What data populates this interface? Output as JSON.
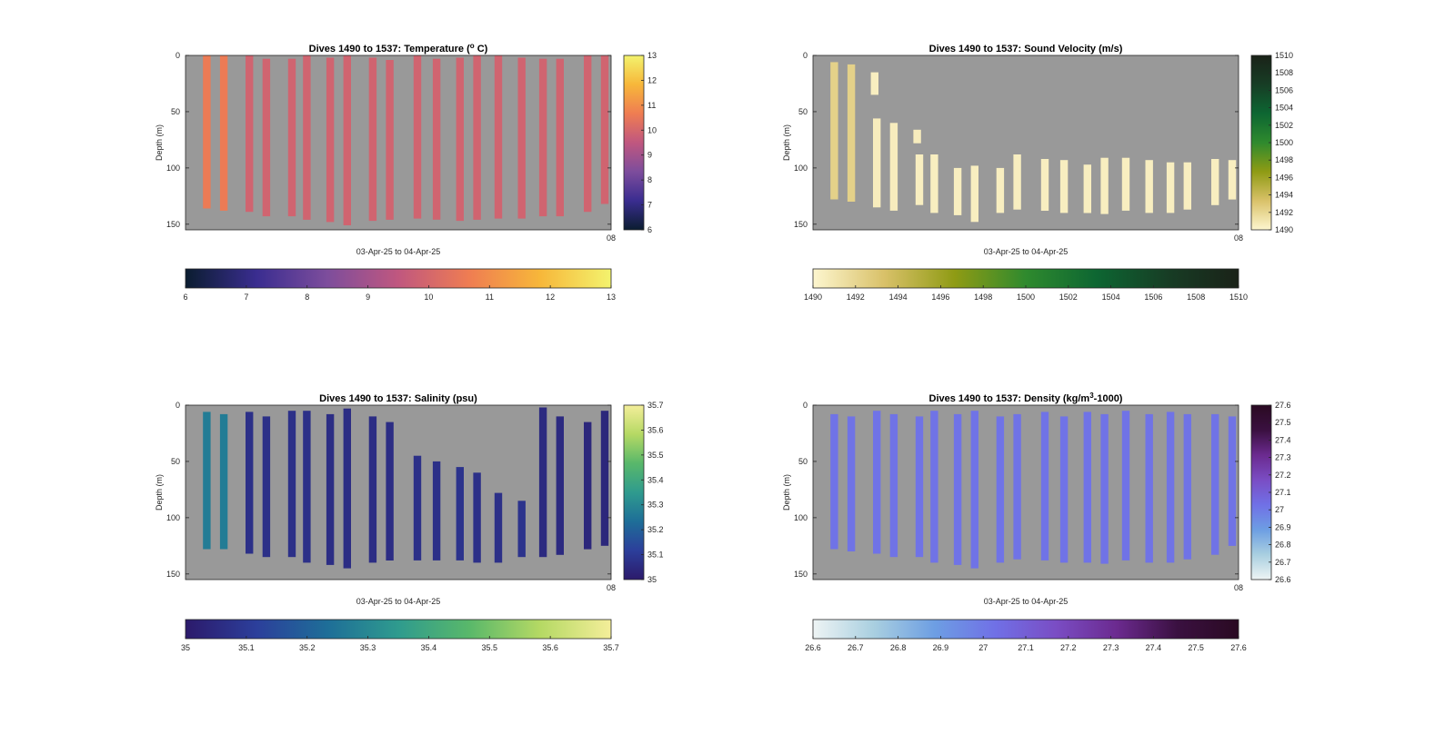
{
  "chart_data": [
    {
      "type": "heatmap",
      "title": "Dives 1490 to 1537: Temperature (°C)",
      "title_main": "Dives 1490 to 1537: Temperature (",
      "title_sup": "o",
      "title_end": " C)",
      "xlabel": "03-Apr-25 to 04-Apr-25",
      "ylabel": "Depth (m)",
      "y_ticks": [
        "0",
        "50",
        "100",
        "150"
      ],
      "x_end_label": "08",
      "ylim": [
        0,
        155
      ],
      "colorbar": {
        "min": 6,
        "max": 13,
        "ticks": [
          "6",
          "7",
          "8",
          "9",
          "10",
          "11",
          "12",
          "13"
        ],
        "stops": [
          "#0b1d30",
          "#3a2d90",
          "#7d4d9c",
          "#c0577f",
          "#ef7d52",
          "#f7b73a",
          "#f3f36e"
        ]
      },
      "profiles": [
        {
          "x": 0.05,
          "top": 0,
          "bottom": 136,
          "value": 10.6
        },
        {
          "x": 0.09,
          "top": 0,
          "bottom": 138,
          "value": 10.6
        },
        {
          "x": 0.15,
          "top": 0,
          "bottom": 139,
          "value": 9.9
        },
        {
          "x": 0.19,
          "top": 3,
          "bottom": 143,
          "value": 9.9
        },
        {
          "x": 0.25,
          "top": 3,
          "bottom": 143,
          "value": 9.9
        },
        {
          "x": 0.285,
          "top": 0,
          "bottom": 146,
          "value": 9.9
        },
        {
          "x": 0.34,
          "top": 2,
          "bottom": 148,
          "value": 9.9
        },
        {
          "x": 0.38,
          "top": 0,
          "bottom": 151,
          "value": 9.9
        },
        {
          "x": 0.44,
          "top": 2,
          "bottom": 147,
          "value": 9.9
        },
        {
          "x": 0.48,
          "top": 4,
          "bottom": 146,
          "value": 9.9
        },
        {
          "x": 0.545,
          "top": 0,
          "bottom": 145,
          "value": 9.9
        },
        {
          "x": 0.59,
          "top": 3,
          "bottom": 146,
          "value": 9.9
        },
        {
          "x": 0.645,
          "top": 2,
          "bottom": 147,
          "value": 9.9
        },
        {
          "x": 0.685,
          "top": 0,
          "bottom": 146,
          "value": 9.9
        },
        {
          "x": 0.735,
          "top": 0,
          "bottom": 145,
          "value": 9.9
        },
        {
          "x": 0.79,
          "top": 2,
          "bottom": 145,
          "value": 9.9
        },
        {
          "x": 0.84,
          "top": 3,
          "bottom": 143,
          "value": 9.9
        },
        {
          "x": 0.88,
          "top": 3,
          "bottom": 143,
          "value": 9.9
        },
        {
          "x": 0.945,
          "top": 0,
          "bottom": 139,
          "value": 9.9
        },
        {
          "x": 0.985,
          "top": 0,
          "bottom": 132,
          "value": 9.9
        }
      ]
    },
    {
      "type": "heatmap",
      "title": "Dives 1490 to 1537: Sound Velocity (m/s)",
      "title_main": "Dives 1490 to 1537: Sound Velocity (m/s)",
      "title_sup": "",
      "title_end": "",
      "xlabel": "03-Apr-25 to 04-Apr-25",
      "ylabel": "Depth (m)",
      "y_ticks": [
        "0",
        "50",
        "100",
        "150"
      ],
      "x_end_label": "08",
      "ylim": [
        0,
        155
      ],
      "colorbar": {
        "min": 1490,
        "max": 1510,
        "ticks": [
          "1490",
          "1492",
          "1494",
          "1496",
          "1498",
          "1500",
          "1502",
          "1504",
          "1506",
          "1508",
          "1510"
        ],
        "stops": [
          "#fdf6cf",
          "#d9c169",
          "#8f9b14",
          "#2f8a2e",
          "#0d6632",
          "#173d25",
          "#1a2218"
        ]
      },
      "profiles": [
        {
          "x": 0.05,
          "top": 6,
          "bottom": 128,
          "value": 1492.3
        },
        {
          "x": 0.09,
          "top": 8,
          "bottom": 130,
          "value": 1492.3
        },
        {
          "x": 0.145,
          "top": 15,
          "bottom": 35,
          "value": 1490.5
        },
        {
          "x": 0.15,
          "top": 56,
          "bottom": 135,
          "value": 1490.6
        },
        {
          "x": 0.19,
          "top": 60,
          "bottom": 138,
          "value": 1490.6
        },
        {
          "x": 0.245,
          "top": 66,
          "bottom": 78,
          "value": 1490.6
        },
        {
          "x": 0.25,
          "top": 88,
          "bottom": 133,
          "value": 1490.5
        },
        {
          "x": 0.285,
          "top": 88,
          "bottom": 140,
          "value": 1490.5
        },
        {
          "x": 0.34,
          "top": 100,
          "bottom": 142,
          "value": 1490.5
        },
        {
          "x": 0.38,
          "top": 98,
          "bottom": 148,
          "value": 1490.5
        },
        {
          "x": 0.44,
          "top": 100,
          "bottom": 140,
          "value": 1490.5
        },
        {
          "x": 0.48,
          "top": 88,
          "bottom": 137,
          "value": 1490.5
        },
        {
          "x": 0.545,
          "top": 92,
          "bottom": 138,
          "value": 1490.5
        },
        {
          "x": 0.59,
          "top": 93,
          "bottom": 140,
          "value": 1490.5
        },
        {
          "x": 0.645,
          "top": 97,
          "bottom": 140,
          "value": 1490.5
        },
        {
          "x": 0.685,
          "top": 91,
          "bottom": 141,
          "value": 1490.5
        },
        {
          "x": 0.735,
          "top": 91,
          "bottom": 138,
          "value": 1490.5
        },
        {
          "x": 0.79,
          "top": 93,
          "bottom": 140,
          "value": 1490.5
        },
        {
          "x": 0.84,
          "top": 95,
          "bottom": 140,
          "value": 1490.5
        },
        {
          "x": 0.88,
          "top": 95,
          "bottom": 137,
          "value": 1490.5
        },
        {
          "x": 0.945,
          "top": 92,
          "bottom": 133,
          "value": 1490.5
        },
        {
          "x": 0.985,
          "top": 93,
          "bottom": 128,
          "value": 1490.5
        }
      ]
    },
    {
      "type": "heatmap",
      "title": "Dives 1490 to 1537: Salinity (psu)",
      "title_main": "Dives 1490 to 1537: Salinity (psu)",
      "title_sup": "",
      "title_end": "",
      "xlabel": "03-Apr-25 to 04-Apr-25",
      "ylabel": "Depth (m)",
      "y_ticks": [
        "0",
        "50",
        "100",
        "150"
      ],
      "x_end_label": "08",
      "ylim": [
        0,
        155
      ],
      "colorbar": {
        "min": 35,
        "max": 35.7,
        "ticks": [
          "35",
          "35.1",
          "35.2",
          "35.3",
          "35.4",
          "35.5",
          "35.6",
          "35.7"
        ],
        "stops": [
          "#2c1a6b",
          "#2c3f9b",
          "#1e6e98",
          "#2f9b8e",
          "#59b86a",
          "#b5d964",
          "#f4ee9a"
        ]
      },
      "profiles": [
        {
          "x": 0.05,
          "top": 6,
          "bottom": 128,
          "value": 35.27
        },
        {
          "x": 0.09,
          "top": 8,
          "bottom": 128,
          "value": 35.27
        },
        {
          "x": 0.15,
          "top": 6,
          "bottom": 132,
          "value": 35.07
        },
        {
          "x": 0.19,
          "top": 10,
          "bottom": 135,
          "value": 35.07
        },
        {
          "x": 0.25,
          "top": 5,
          "bottom": 135,
          "value": 35.07
        },
        {
          "x": 0.285,
          "top": 5,
          "bottom": 140,
          "value": 35.07
        },
        {
          "x": 0.34,
          "top": 8,
          "bottom": 142,
          "value": 35.06
        },
        {
          "x": 0.38,
          "top": 3,
          "bottom": 145,
          "value": 35.06
        },
        {
          "x": 0.44,
          "top": 10,
          "bottom": 140,
          "value": 35.06
        },
        {
          "x": 0.48,
          "top": 15,
          "bottom": 138,
          "value": 35.06
        },
        {
          "x": 0.545,
          "top": 45,
          "bottom": 138,
          "value": 35.07
        },
        {
          "x": 0.59,
          "top": 50,
          "bottom": 138,
          "value": 35.07
        },
        {
          "x": 0.645,
          "top": 55,
          "bottom": 138,
          "value": 35.08
        },
        {
          "x": 0.685,
          "top": 60,
          "bottom": 140,
          "value": 35.07
        },
        {
          "x": 0.735,
          "top": 78,
          "bottom": 140,
          "value": 35.07
        },
        {
          "x": 0.79,
          "top": 85,
          "bottom": 135,
          "value": 35.08
        },
        {
          "x": 0.84,
          "top": 2,
          "bottom": 135,
          "value": 35.05
        },
        {
          "x": 0.88,
          "top": 10,
          "bottom": 133,
          "value": 35.05
        },
        {
          "x": 0.945,
          "top": 15,
          "bottom": 128,
          "value": 35.04
        },
        {
          "x": 0.985,
          "top": 5,
          "bottom": 125,
          "value": 35.04
        }
      ]
    },
    {
      "type": "heatmap",
      "title": "Dives 1490 to 1537: Density (kg/m³-1000)",
      "title_main": "Dives 1490 to 1537: Density (kg/m",
      "title_sup": "3",
      "title_end": "-1000)",
      "xlabel": "03-Apr-25 to 04-Apr-25",
      "ylabel": "Depth (m)",
      "y_ticks": [
        "0",
        "50",
        "100",
        "150"
      ],
      "x_end_label": "08",
      "ylim": [
        0,
        155
      ],
      "colorbar": {
        "min": 26.6,
        "max": 27.6,
        "ticks": [
          "26.6",
          "26.7",
          "26.8",
          "26.9",
          "27",
          "27.1",
          "27.2",
          "27.3",
          "27.4",
          "27.5",
          "27.6"
        ],
        "stops": [
          "#eef4f4",
          "#a9cfe0",
          "#6d9ee3",
          "#7070e6",
          "#7a4dc4",
          "#6b2a8f",
          "#3a1040",
          "#2a0a22"
        ]
      },
      "profiles": [
        {
          "x": 0.05,
          "top": 8,
          "bottom": 128,
          "value": 27.02
        },
        {
          "x": 0.09,
          "top": 10,
          "bottom": 130,
          "value": 27.02
        },
        {
          "x": 0.15,
          "top": 5,
          "bottom": 132,
          "value": 27.02
        },
        {
          "x": 0.19,
          "top": 8,
          "bottom": 135,
          "value": 27.02
        },
        {
          "x": 0.25,
          "top": 10,
          "bottom": 135,
          "value": 27.02
        },
        {
          "x": 0.285,
          "top": 5,
          "bottom": 140,
          "value": 27.02
        },
        {
          "x": 0.34,
          "top": 8,
          "bottom": 142,
          "value": 27.02
        },
        {
          "x": 0.38,
          "top": 5,
          "bottom": 145,
          "value": 27.02
        },
        {
          "x": 0.44,
          "top": 10,
          "bottom": 140,
          "value": 27.02
        },
        {
          "x": 0.48,
          "top": 8,
          "bottom": 137,
          "value": 27.02
        },
        {
          "x": 0.545,
          "top": 6,
          "bottom": 138,
          "value": 27.02
        },
        {
          "x": 0.59,
          "top": 10,
          "bottom": 140,
          "value": 27.02
        },
        {
          "x": 0.645,
          "top": 6,
          "bottom": 140,
          "value": 27.02
        },
        {
          "x": 0.685,
          "top": 8,
          "bottom": 141,
          "value": 27.02
        },
        {
          "x": 0.735,
          "top": 5,
          "bottom": 138,
          "value": 27.02
        },
        {
          "x": 0.79,
          "top": 8,
          "bottom": 140,
          "value": 27.02
        },
        {
          "x": 0.84,
          "top": 6,
          "bottom": 140,
          "value": 27.02
        },
        {
          "x": 0.88,
          "top": 8,
          "bottom": 137,
          "value": 27.02
        },
        {
          "x": 0.945,
          "top": 8,
          "bottom": 133,
          "value": 27.02
        },
        {
          "x": 0.985,
          "top": 10,
          "bottom": 125,
          "value": 27.02
        }
      ]
    }
  ]
}
